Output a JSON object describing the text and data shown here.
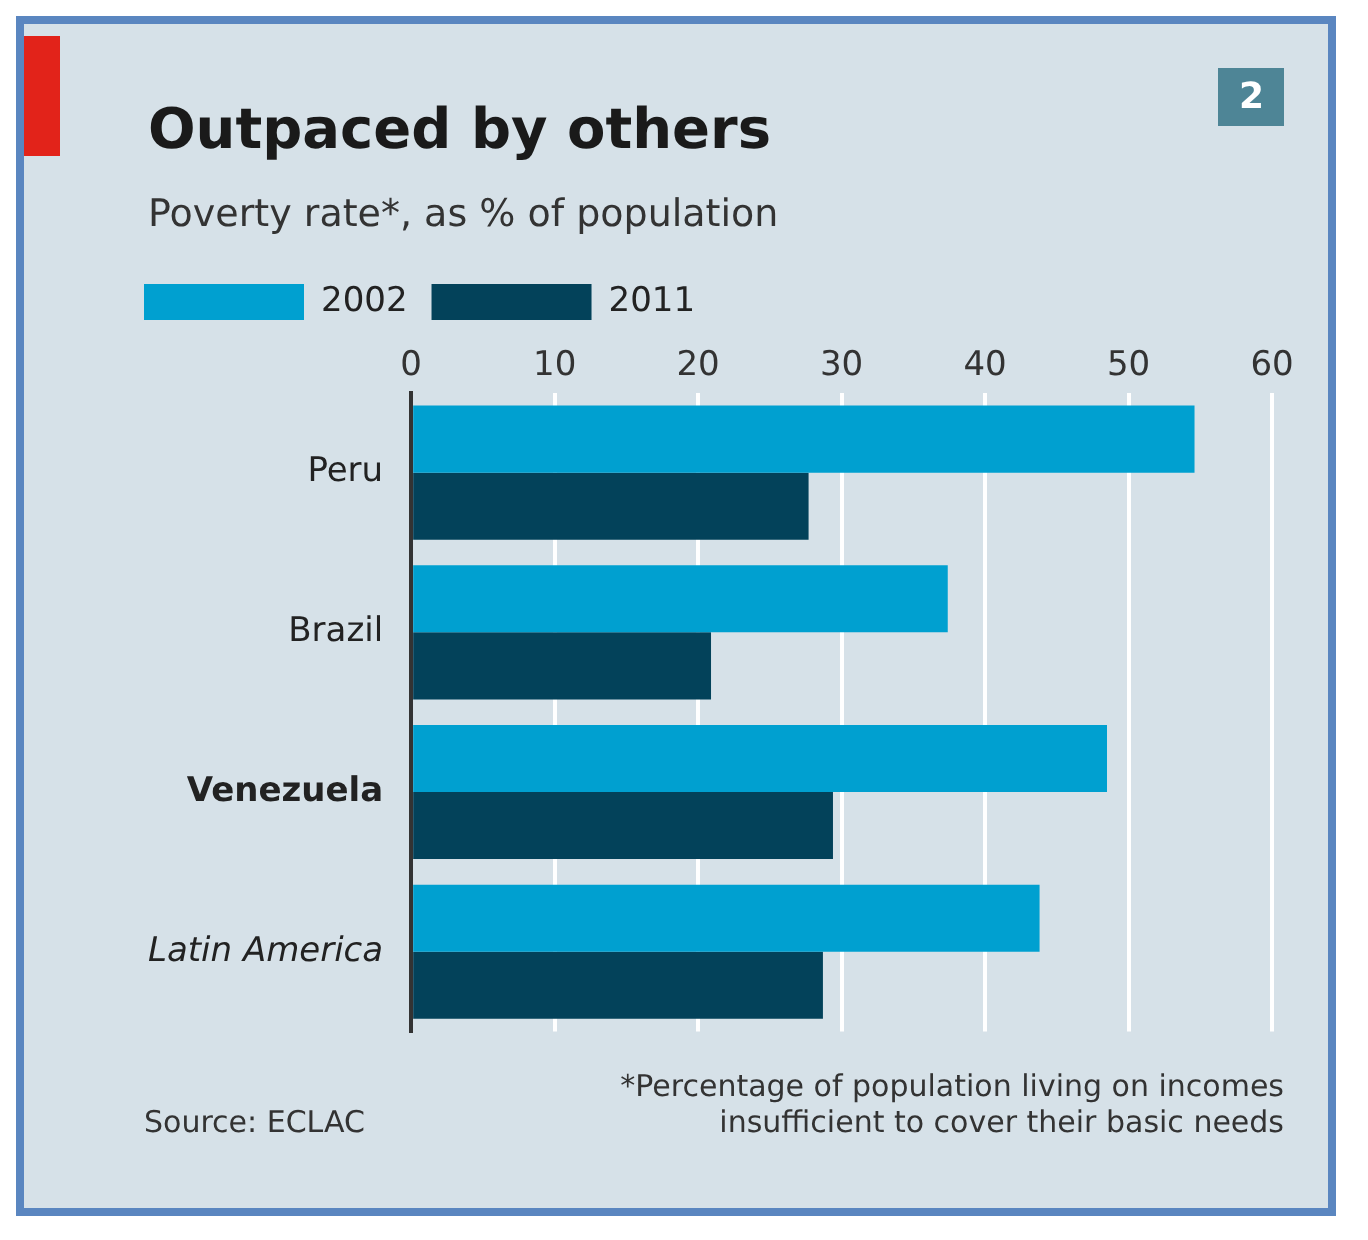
{
  "chart_data": {
    "type": "bar",
    "orientation": "horizontal",
    "title": "Outpaced by others",
    "subtitle": "Poverty rate*, as % of population",
    "categories": [
      "Peru",
      "Brazil",
      "Venezuela",
      "Latin America"
    ],
    "series": [
      {
        "name": "2002",
        "color": "#00a0d0",
        "values": [
          54.6,
          37.4,
          48.5,
          43.8
        ]
      },
      {
        "name": "2011",
        "color": "#03425a",
        "values": [
          27.7,
          20.9,
          29.4,
          28.7
        ]
      }
    ],
    "xlim": [
      0,
      60
    ],
    "xticks": [
      0,
      10,
      20,
      30,
      40,
      50,
      60
    ],
    "grid": "x",
    "legend": "top left",
    "annotations": [
      "2",
      "*Percentage of population living on incomes insufficient to cover their basic needs",
      "Source: ECLAC"
    ]
  }
}
